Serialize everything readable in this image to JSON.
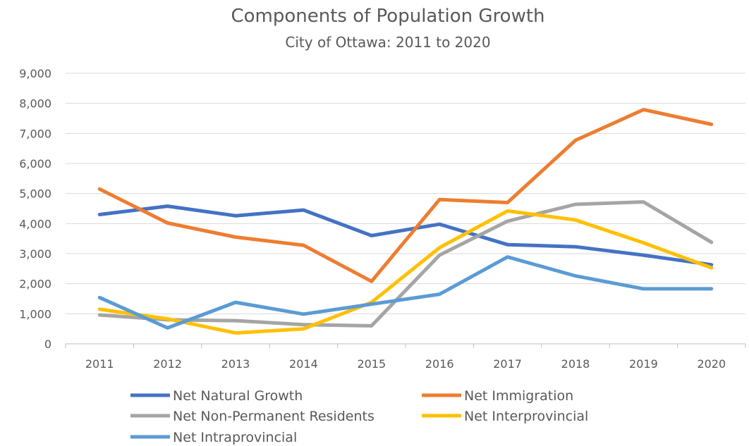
{
  "chart_data": {
    "type": "line",
    "title": "Components of Population Growth",
    "subtitle": "City of Ottawa: 2011 to 2020",
    "x": [
      "2011",
      "2012",
      "2013",
      "2014",
      "2015",
      "2016",
      "2017",
      "2018",
      "2019",
      "2020"
    ],
    "ylim": [
      0,
      9000
    ],
    "yticks": [
      "0",
      "1,000",
      "2,000",
      "3,000",
      "4,000",
      "5,000",
      "6,000",
      "7,000",
      "8,000",
      "9,000"
    ],
    "grid": true,
    "legend_position": "bottom",
    "series": [
      {
        "name": "Net Natural Growth",
        "color": "#4472C4",
        "values": [
          4300,
          4580,
          4260,
          4450,
          3600,
          3980,
          3300,
          3230,
          2950,
          2630
        ]
      },
      {
        "name": "Net Immigration",
        "color": "#ED7D31",
        "values": [
          5150,
          4020,
          3550,
          3280,
          2080,
          4800,
          4700,
          6770,
          7790,
          7300
        ]
      },
      {
        "name": "Net Non-Permanent Residents",
        "color": "#A5A5A5",
        "values": [
          960,
          800,
          770,
          640,
          600,
          2950,
          4080,
          4640,
          4720,
          3380
        ]
      },
      {
        "name": "Net Interprovincial",
        "color": "#FFC000",
        "values": [
          1150,
          830,
          360,
          500,
          1380,
          3200,
          4420,
          4120,
          3360,
          2530
        ]
      },
      {
        "name": "Net Intraprovincial",
        "color": "#5B9BD5",
        "values": [
          1540,
          530,
          1380,
          990,
          1320,
          1650,
          2890,
          2260,
          1830,
          1830
        ]
      }
    ]
  }
}
